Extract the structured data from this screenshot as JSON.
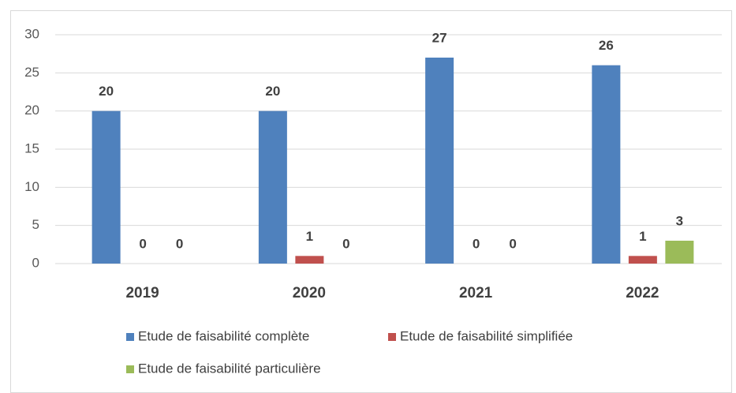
{
  "chart_data": {
    "type": "bar",
    "categories": [
      "2019",
      "2020",
      "2021",
      "2022"
    ],
    "series": [
      {
        "name": "Etude de faisabilité complète",
        "color": "#4f81bd",
        "values": [
          20,
          20,
          27,
          26
        ]
      },
      {
        "name": "Etude de faisabilité simplifiée",
        "color": "#c0504d",
        "values": [
          0,
          1,
          0,
          1
        ]
      },
      {
        "name": "Etude de faisabilité particulière",
        "color": "#9bbb59",
        "values": [
          0,
          0,
          0,
          3
        ]
      }
    ],
    "ylim": [
      0,
      30
    ],
    "yticks": [
      0,
      5,
      10,
      15,
      20,
      25,
      30
    ],
    "grid": true,
    "legend": "bottom"
  }
}
